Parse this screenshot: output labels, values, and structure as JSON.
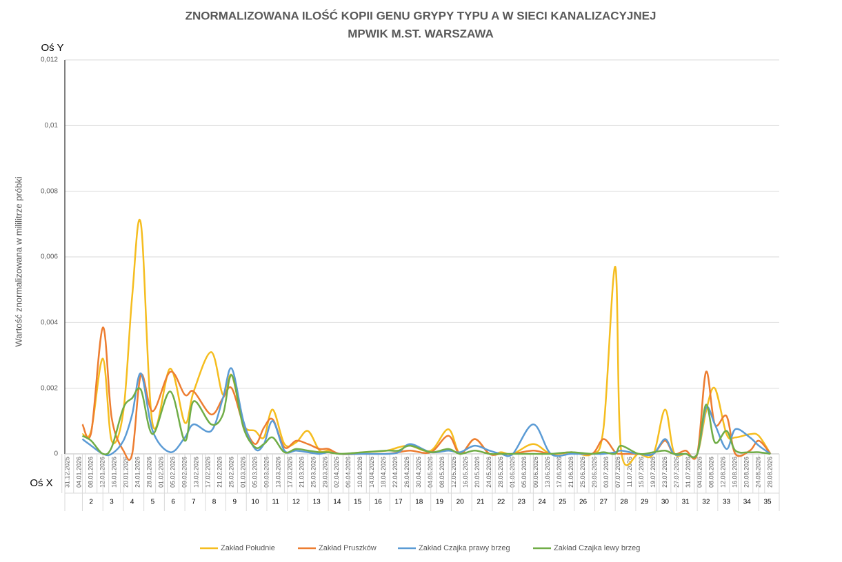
{
  "chart_data": {
    "type": "line",
    "title": [
      "ZNORMALIZOWANA ILOŚĆ KOPII GENU GRYPY TYPU A W SIECI KANALIZACYJNEJ",
      "MPWIK M.ST. WARSZAWA"
    ],
    "y_axis_name": "Oś Y",
    "x_axis_name": "Oś X",
    "y_label": "Wartość znormalizowana  w mililitrze próbki",
    "x": [
      "05.01.2026",
      "08.01.2026",
      "12.01.2026",
      "15.01.2026",
      "19.01.2026",
      "22.01.2026",
      "25.01.2026",
      "29.01.2026",
      "04.02.2026",
      "09.02.2026",
      "12.02.2026",
      "18.02.2026",
      "22.02.2026",
      "25.02.2026",
      "01.03.2026",
      "05.03.2026",
      "08.03.2026",
      "11.03.2026",
      "15.03.2026",
      "19.03.2026",
      "23.03.2026",
      "27.03.2026",
      "30.03.2026",
      "03.04.2026",
      "11.04.2026",
      "19.04.2026",
      "23.04.2026",
      "27.04.2026",
      "04.05.2026",
      "10.05.2026",
      "14.05.2026",
      "19.05.2026",
      "24.05.2026",
      "28.05.2026",
      "01.06.2026",
      "08.06.2026",
      "14.06.2026",
      "21.06.2026",
      "28.06.2026",
      "02.07.2026",
      "06.07.2026",
      "08.07.2026",
      "14.07.2026",
      "19.07.2026",
      "23.07.2026",
      "26.07.2026",
      "30.07.2026",
      "03.08.2026",
      "06.08.2026",
      "09.08.2026",
      "13.08.2026",
      "16.08.2026",
      "21.08.2026",
      "24.08.2026",
      "28.08.2026"
    ],
    "series": [
      {
        "name": "Zakład Południe",
        "color": "#f5bd1f",
        "values": [
          0.0006,
          0.0007,
          0.0029,
          0.0004,
          0.0013,
          0.0048,
          0.007,
          0.0009,
          0.0026,
          0.00095,
          0.0019,
          0.0031,
          0.0018,
          0.0024,
          0.0009,
          0.0007,
          0.0005,
          0.00135,
          0.0003,
          0.00035,
          0.0007,
          0.0001,
          0.0001,
          0,
          5e-05,
          0.0001,
          0.0002,
          0.00025,
          0.0001,
          0.00075,
          0,
          0.00045,
          0,
          5e-05,
          0,
          0.0003,
          0,
          5e-05,
          0,
          0.0008,
          0.0057,
          0.0001,
          0,
          0,
          0.00135,
          5e-05,
          0,
          0,
          0.0013,
          0.002,
          0.0006,
          0.0005,
          0.0006,
          0.00055,
          0
        ]
      },
      {
        "name": "Zakład Pruszków",
        "color": "#ed7d31",
        "values": [
          0.0009,
          0.00065,
          0.00385,
          0.0011,
          0.0001,
          0,
          0.0024,
          0.0013,
          0.0025,
          0.0018,
          0.0019,
          0.0012,
          0.0017,
          0.002,
          0.0009,
          0.0003,
          0.0008,
          0.00105,
          0.0002,
          0.0004,
          0.0003,
          0.00015,
          0.00015,
          0,
          0,
          0,
          5e-05,
          0.0001,
          5e-05,
          0.00055,
          0,
          0.00045,
          0,
          0,
          0,
          0.0001,
          0,
          5e-05,
          0,
          0.00045,
          5e-05,
          0,
          0,
          0,
          0.0004,
          0,
          0.0001,
          0,
          0.0025,
          0.0009,
          0.00115,
          0,
          0.0001,
          0.0004,
          0
        ]
      },
      {
        "name": "Zakład Czajka prawy brzeg",
        "color": "#5b9bd5",
        "values": [
          0.00045,
          0.00025,
          0,
          0,
          0.0004,
          0.0012,
          0.00245,
          0.0007,
          5e-05,
          0.0005,
          0.0009,
          0.0007,
          0.0017,
          0.0026,
          0.001,
          0.00015,
          0.0003,
          0.001,
          0.0001,
          0.0001,
          5e-05,
          0,
          5e-05,
          0,
          0,
          0,
          5e-05,
          0.0003,
          5e-05,
          0.0001,
          5e-05,
          0.00025,
          0.0001,
          0,
          0,
          0.0009,
          0,
          0,
          0,
          0,
          5e-05,
          0.0001,
          0,
          0,
          0.00045,
          0,
          0,
          0,
          0.0014,
          0.0009,
          0.00015,
          0.00075,
          0.0005,
          0.00025,
          0
        ]
      },
      {
        "name": "Zakład Czajka lewy brzeg",
        "color": "#70ad47",
        "values": [
          0.00055,
          0.0004,
          0,
          0.0002,
          0.0014,
          0.0017,
          0.00195,
          0.0006,
          0.0019,
          0.0004,
          0.0016,
          0.0009,
          0.0012,
          0.0024,
          0.0008,
          0.0002,
          0.0003,
          0.0005,
          5e-05,
          0.00015,
          0.0001,
          5e-05,
          5e-05,
          0,
          5e-05,
          0.0001,
          0.0001,
          0.00025,
          5e-05,
          0.00015,
          0,
          0.0001,
          0,
          0,
          0,
          0,
          0,
          5e-05,
          0,
          5e-05,
          0,
          0.00025,
          0,
          5e-05,
          0.0001,
          0,
          0,
          0,
          0.0015,
          0.00035,
          0.0007,
          0.0001,
          5e-05,
          5e-05,
          0
        ]
      }
    ],
    "xlim": [
      "30.12.2025",
      "31.08.2026"
    ],
    "xticks": [
      "31.12.2025",
      "04.01.2026",
      "08.01.2026",
      "12.01.2026",
      "16.01.2026",
      "20.01.2026",
      "24.01.2026",
      "28.01.2026",
      "01.02.2026",
      "05.02.2026",
      "09.02.2026",
      "13.02.2026",
      "17.02.2026",
      "21.02.2026",
      "25.02.2026",
      "01.03.2026",
      "05.03.2026",
      "09.03.2026",
      "13.03.2026",
      "17.03.2026",
      "21.03.2026",
      "25.03.2026",
      "29.03.2026",
      "02.04.2026",
      "06.04.2026",
      "10.04.2026",
      "14.04.2026",
      "18.04.2026",
      "22.04.2026",
      "26.04.2026",
      "30.04.2026",
      "04.05.2026",
      "08.05.2026",
      "12.05.2026",
      "16.05.2026",
      "20.05.2026",
      "24.05.2026",
      "28.05.2026",
      "01.06.2026",
      "05.06.2026",
      "09.06.2026",
      "13.06.2026",
      "17.06.2026",
      "21.06.2026",
      "25.06.2026",
      "29.06.2026",
      "03.07.2026",
      "07.07.2026",
      "11.07.2026",
      "15.07.2026",
      "19.07.2026",
      "23.07.2026",
      "27.07.2026",
      "31.07.2026",
      "04.08.2026",
      "08.08.2026",
      "12.08.2026",
      "16.08.2026",
      "20.08.2026",
      "24.08.2026",
      "28.08.2026"
    ],
    "weeks": [
      2,
      3,
      4,
      5,
      6,
      7,
      8,
      9,
      10,
      11,
      12,
      13,
      14,
      15,
      16,
      17,
      18,
      19,
      20,
      21,
      22,
      23,
      24,
      25,
      26,
      27,
      28,
      29,
      30,
      31,
      32,
      33,
      34,
      35
    ],
    "ylim": [
      0,
      0.012
    ],
    "yticks": [
      0,
      {
        "value": 0.002,
        "label": "0,002"
      },
      {
        "value": 0.004,
        "label": "0,004"
      },
      {
        "value": 0.006,
        "label": "0,006"
      },
      {
        "value": 0.008,
        "label": "0,008"
      },
      {
        "value": 0.01,
        "label": "0,01"
      },
      {
        "value": 0.012,
        "label": "0,012"
      }
    ],
    "grid": true,
    "smooth": true,
    "legend": "bottom"
  }
}
